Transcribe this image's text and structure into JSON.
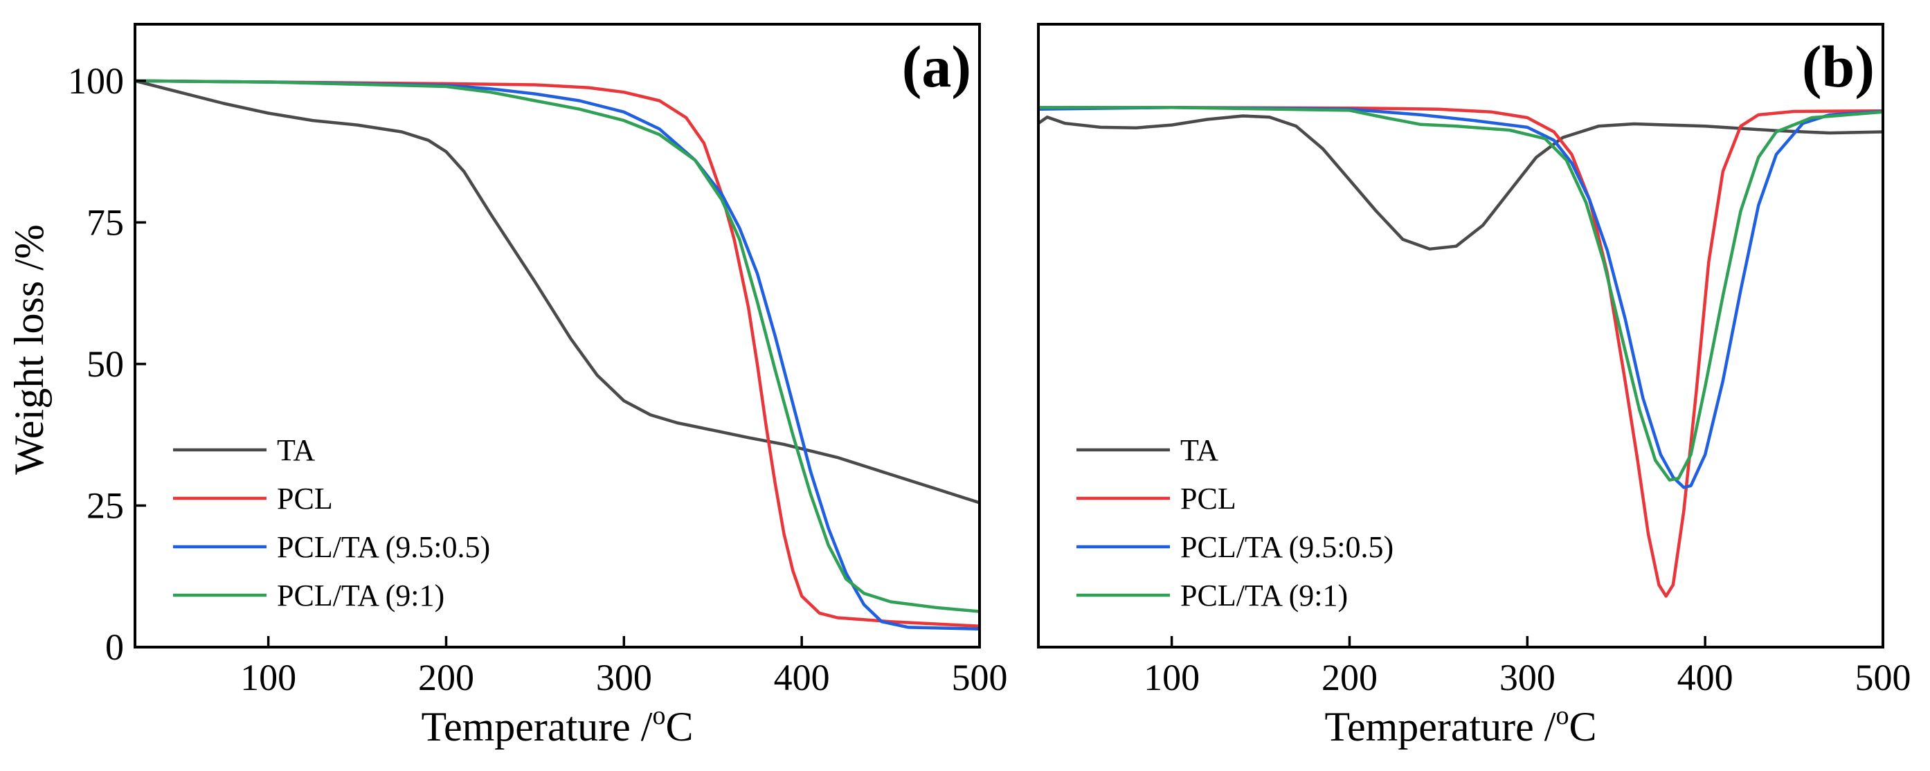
{
  "chart_data": [
    {
      "type": "line",
      "id": "a",
      "panel_label": "(a)",
      "xlabel": "Temperature /",
      "xlabel_unit_sup": "o",
      "xlabel_unit": "C",
      "ylabel": "Weight loss /%",
      "xlim": [
        25,
        500
      ],
      "ylim": [
        0,
        110
      ],
      "xticks": [
        100,
        200,
        300,
        400,
        500
      ],
      "yticks": [
        0,
        25,
        50,
        75,
        100
      ],
      "show_yticklabels": true,
      "legend_position": "bottom-left",
      "series": [
        {
          "name": "TA",
          "color": "#4a4a4a",
          "points": [
            [
              25,
              100
            ],
            [
              50,
              98
            ],
            [
              75,
              96
            ],
            [
              100,
              94.3
            ],
            [
              125,
              93
            ],
            [
              150,
              92.2
            ],
            [
              175,
              91
            ],
            [
              190,
              89.5
            ],
            [
              200,
              87.5
            ],
            [
              210,
              84
            ],
            [
              225,
              76.5
            ],
            [
              250,
              64.5
            ],
            [
              270,
              54.5
            ],
            [
              285,
              48
            ],
            [
              300,
              43.5
            ],
            [
              315,
              41
            ],
            [
              330,
              39.6
            ],
            [
              350,
              38.3
            ],
            [
              370,
              37
            ],
            [
              390,
              35.8
            ],
            [
              420,
              33.5
            ],
            [
              450,
              30.5
            ],
            [
              475,
              28
            ],
            [
              500,
              25.5
            ]
          ]
        },
        {
          "name": "PCL",
          "color": "#e8363a",
          "points": [
            [
              25,
              100
            ],
            [
              100,
              99.8
            ],
            [
              200,
              99.5
            ],
            [
              250,
              99.3
            ],
            [
              280,
              98.8
            ],
            [
              300,
              98
            ],
            [
              320,
              96.5
            ],
            [
              335,
              93.5
            ],
            [
              345,
              89
            ],
            [
              355,
              80
            ],
            [
              362,
              72
            ],
            [
              370,
              60
            ],
            [
              375,
              50
            ],
            [
              380,
              39
            ],
            [
              385,
              29
            ],
            [
              390,
              20
            ],
            [
              395,
              13.5
            ],
            [
              400,
              9
            ],
            [
              410,
              6
            ],
            [
              420,
              5.2
            ],
            [
              450,
              4.5
            ],
            [
              500,
              3.7
            ]
          ]
        },
        {
          "name": "PCL/TA (9.5:0.5)",
          "color": "#1f5fe0",
          "points": [
            [
              25,
              100
            ],
            [
              100,
              99.8
            ],
            [
              200,
              99.2
            ],
            [
              225,
              98.6
            ],
            [
              250,
              97.7
            ],
            [
              275,
              96.5
            ],
            [
              300,
              94.5
            ],
            [
              320,
              91.5
            ],
            [
              340,
              86
            ],
            [
              355,
              80
            ],
            [
              365,
              74
            ],
            [
              375,
              66
            ],
            [
              385,
              55
            ],
            [
              395,
              43
            ],
            [
              405,
              31
            ],
            [
              415,
              21
            ],
            [
              425,
              13
            ],
            [
              435,
              7.5
            ],
            [
              445,
              4.5
            ],
            [
              460,
              3.5
            ],
            [
              500,
              3.2
            ]
          ]
        },
        {
          "name": "PCL/TA (9:1)",
          "color": "#2fa055",
          "points": [
            [
              25,
              100
            ],
            [
              100,
              99.8
            ],
            [
              200,
              99
            ],
            [
              225,
              98
            ],
            [
              250,
              96.5
            ],
            [
              275,
              95
            ],
            [
              300,
              93
            ],
            [
              320,
              90.5
            ],
            [
              340,
              86
            ],
            [
              355,
              79
            ],
            [
              365,
              72
            ],
            [
              375,
              61
            ],
            [
              385,
              49
            ],
            [
              395,
              37.5
            ],
            [
              405,
              27
            ],
            [
              415,
              18
            ],
            [
              425,
              12
            ],
            [
              435,
              9.5
            ],
            [
              450,
              8
            ],
            [
              475,
              7
            ],
            [
              500,
              6.3
            ]
          ]
        }
      ]
    },
    {
      "type": "line",
      "id": "b",
      "panel_label": "(b)",
      "xlabel": "Temperature /",
      "xlabel_unit_sup": "o",
      "xlabel_unit": "C",
      "ylabel": "",
      "xlim": [
        25,
        500
      ],
      "ylim": [
        0,
        110
      ],
      "xticks": [
        100,
        200,
        300,
        400,
        500
      ],
      "yticks": [],
      "show_yticklabels": false,
      "legend_position": "bottom-left",
      "series": [
        {
          "name": "TA",
          "color": "#4a4a4a",
          "points": [
            [
              25,
              92.5
            ],
            [
              30,
              93.6
            ],
            [
              40,
              92.5
            ],
            [
              60,
              91.8
            ],
            [
              80,
              91.7
            ],
            [
              100,
              92.2
            ],
            [
              120,
              93.2
            ],
            [
              140,
              93.8
            ],
            [
              155,
              93.6
            ],
            [
              170,
              92
            ],
            [
              185,
              88
            ],
            [
              200,
              82.5
            ],
            [
              215,
              77
            ],
            [
              230,
              72
            ],
            [
              245,
              70.3
            ],
            [
              260,
              70.8
            ],
            [
              275,
              74.5
            ],
            [
              290,
              80.5
            ],
            [
              305,
              86.5
            ],
            [
              320,
              90
            ],
            [
              340,
              92
            ],
            [
              360,
              92.4
            ],
            [
              400,
              92
            ],
            [
              440,
              91.2
            ],
            [
              470,
              90.8
            ],
            [
              500,
              91
            ]
          ]
        },
        {
          "name": "PCL",
          "color": "#e8363a",
          "points": [
            [
              25,
              95.2
            ],
            [
              100,
              95.3
            ],
            [
              200,
              95.2
            ],
            [
              250,
              95
            ],
            [
              280,
              94.5
            ],
            [
              300,
              93.5
            ],
            [
              315,
              91
            ],
            [
              325,
              87
            ],
            [
              335,
              79
            ],
            [
              345,
              66
            ],
            [
              355,
              47
            ],
            [
              362,
              33
            ],
            [
              368,
              20
            ],
            [
              374,
              11
            ],
            [
              378,
              9
            ],
            [
              382,
              11
            ],
            [
              388,
              24
            ],
            [
              395,
              45
            ],
            [
              402,
              68
            ],
            [
              410,
              84
            ],
            [
              420,
              92
            ],
            [
              430,
              94
            ],
            [
              450,
              94.6
            ],
            [
              500,
              94.7
            ]
          ]
        },
        {
          "name": "PCL/TA (9.5:0.5)",
          "color": "#1f5fe0",
          "points": [
            [
              25,
              95
            ],
            [
              100,
              95.3
            ],
            [
              200,
              95
            ],
            [
              240,
              94
            ],
            [
              270,
              93
            ],
            [
              300,
              91.8
            ],
            [
              315,
              89.5
            ],
            [
              325,
              85.5
            ],
            [
              335,
              79
            ],
            [
              345,
              70
            ],
            [
              355,
              58
            ],
            [
              365,
              44
            ],
            [
              375,
              34
            ],
            [
              382,
              30
            ],
            [
              388,
              28.2
            ],
            [
              392,
              28.5
            ],
            [
              400,
              34
            ],
            [
              410,
              47
            ],
            [
              420,
              63
            ],
            [
              430,
              78
            ],
            [
              440,
              87
            ],
            [
              455,
              92.5
            ],
            [
              470,
              94
            ],
            [
              500,
              94.6
            ]
          ]
        },
        {
          "name": "PCL/TA (9:1)",
          "color": "#2fa055",
          "points": [
            [
              25,
              95.3
            ],
            [
              100,
              95.3
            ],
            [
              200,
              94.8
            ],
            [
              220,
              93.5
            ],
            [
              240,
              92.3
            ],
            [
              260,
              92
            ],
            [
              290,
              91.3
            ],
            [
              310,
              89.8
            ],
            [
              322,
              86
            ],
            [
              333,
              78.5
            ],
            [
              343,
              68
            ],
            [
              353,
              55
            ],
            [
              363,
              42
            ],
            [
              372,
              33
            ],
            [
              380,
              29.5
            ],
            [
              385,
              29.8
            ],
            [
              392,
              34
            ],
            [
              400,
              46
            ],
            [
              410,
              62
            ],
            [
              420,
              77
            ],
            [
              430,
              86.5
            ],
            [
              440,
              91
            ],
            [
              460,
              93.5
            ],
            [
              500,
              94.5
            ]
          ]
        }
      ]
    }
  ]
}
